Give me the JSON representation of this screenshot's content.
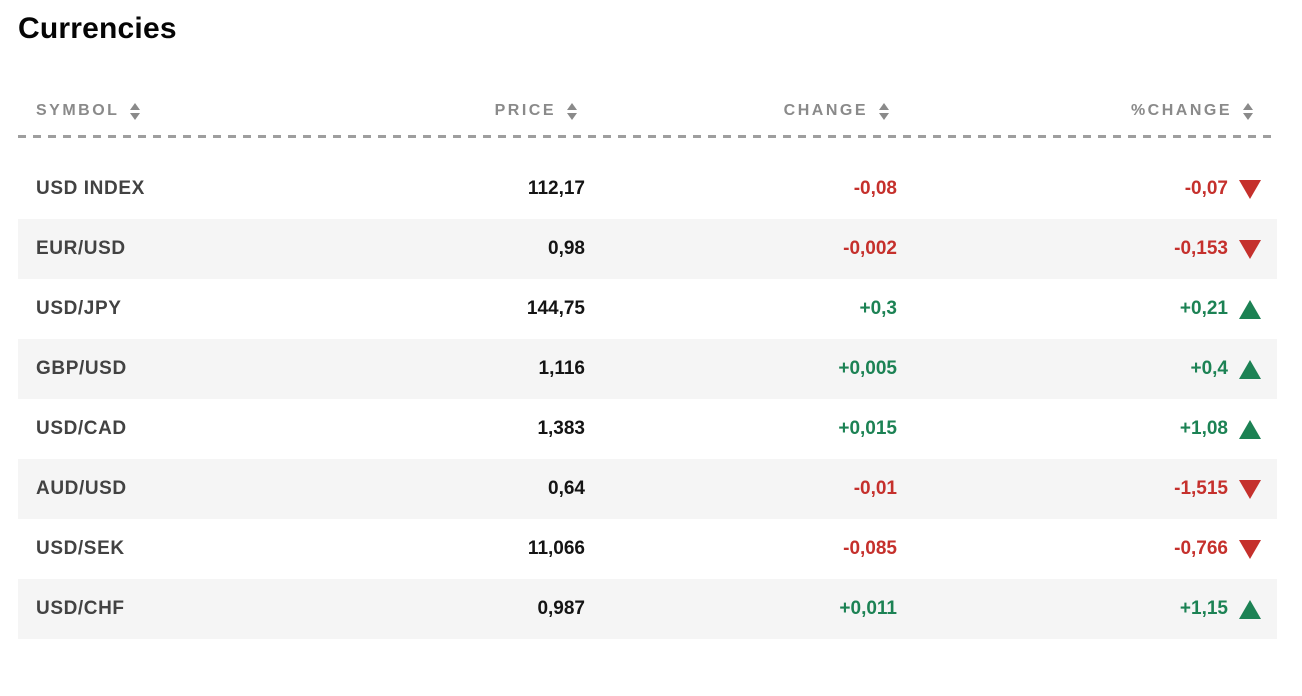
{
  "title": "Currencies",
  "colors": {
    "positive": "#1c8254",
    "negative": "#c5302c",
    "row_stripe": "#f5f5f5",
    "header_text": "#8a8a8a"
  },
  "table": {
    "columns": [
      {
        "label": "SYMBOL"
      },
      {
        "label": "PRICE"
      },
      {
        "label": "CHANGE"
      },
      {
        "label": "%CHANGE"
      }
    ],
    "rows": [
      {
        "symbol": "USD INDEX",
        "price": "112,17",
        "change": "-0,08",
        "pct_change": "-0,07",
        "direction": "down"
      },
      {
        "symbol": "EUR/USD",
        "price": "0,98",
        "change": "-0,002",
        "pct_change": "-0,153",
        "direction": "down"
      },
      {
        "symbol": "USD/JPY",
        "price": "144,75",
        "change": "+0,3",
        "pct_change": "+0,21",
        "direction": "up"
      },
      {
        "symbol": "GBP/USD",
        "price": "1,116",
        "change": "+0,005",
        "pct_change": "+0,4",
        "direction": "up"
      },
      {
        "symbol": "USD/CAD",
        "price": "1,383",
        "change": "+0,015",
        "pct_change": "+1,08",
        "direction": "up"
      },
      {
        "symbol": "AUD/USD",
        "price": "0,64",
        "change": "-0,01",
        "pct_change": "-1,515",
        "direction": "down"
      },
      {
        "symbol": "USD/SEK",
        "price": "11,066",
        "change": "-0,085",
        "pct_change": "-0,766",
        "direction": "down"
      },
      {
        "symbol": "USD/CHF",
        "price": "0,987",
        "change": "+0,011",
        "pct_change": "+1,15",
        "direction": "up"
      }
    ]
  }
}
